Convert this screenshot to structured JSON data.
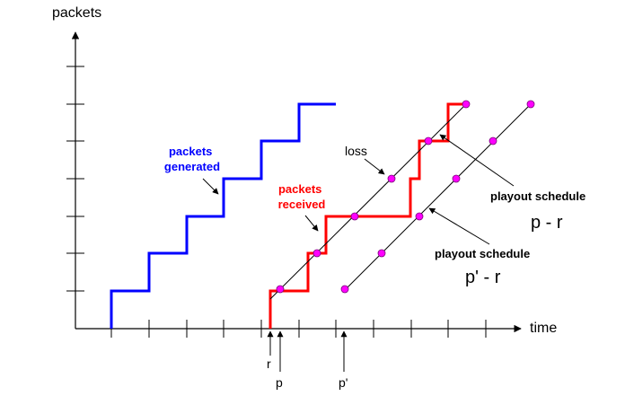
{
  "axes": {
    "y_label": "packets",
    "x_label": "time"
  },
  "annotations": {
    "packets_generated": [
      "packets",
      "generated"
    ],
    "packets_received": [
      "packets",
      "received"
    ],
    "loss": "loss",
    "playout_schedule_1": "playout schedule",
    "playout_formula_1": "p - r",
    "playout_schedule_2": "playout schedule",
    "playout_formula_2": "p' - r"
  },
  "markers": {
    "r": "r",
    "p": "p",
    "p_prime": "p'"
  },
  "colors": {
    "generated": "#0000ff",
    "received": "#ff0000",
    "points": "#ff00ff",
    "axis": "#000000"
  }
}
